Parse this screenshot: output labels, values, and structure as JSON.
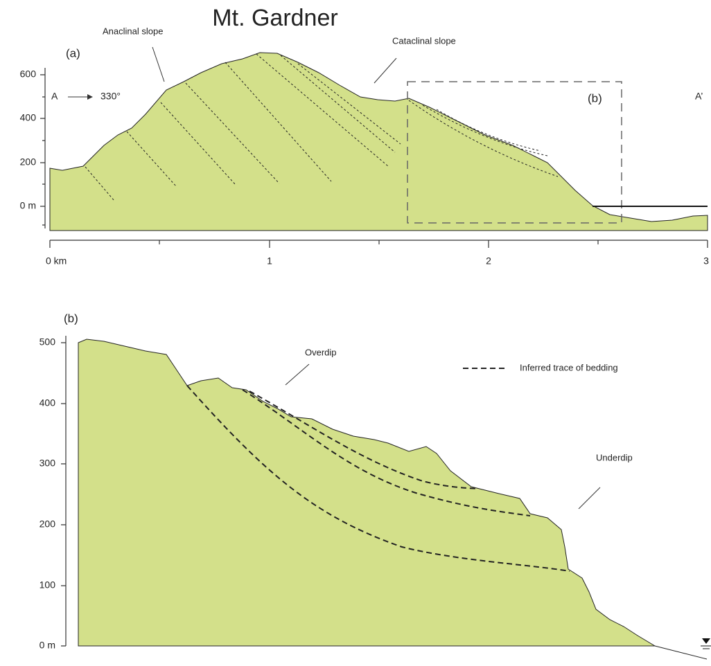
{
  "title": "Mt. Gardner",
  "panel_a": {
    "label": "(a)",
    "annotations": {
      "anaclinal": "Anaclinal slope",
      "cataclinal": "Cataclinal slope",
      "start": "A",
      "bearing": "330°",
      "end": "A’",
      "inset": "(b)"
    },
    "yticks": [
      "600",
      "400",
      "200",
      "0 m"
    ],
    "xticks": [
      "0 km",
      "1",
      "2",
      "3"
    ]
  },
  "panel_b": {
    "label": "(b)",
    "annotations": {
      "overdip": "Overdip",
      "underdip": "Underdip"
    },
    "legend": "Inferred trace of bedding",
    "yticks": [
      "500",
      "400",
      "300",
      "200",
      "100",
      "0 m"
    ]
  }
}
